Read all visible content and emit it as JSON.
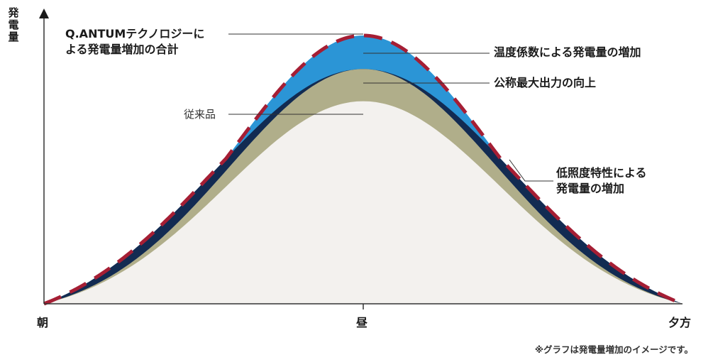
{
  "chart_data": {
    "type": "area",
    "ylabel": "発電量",
    "categories": [
      "朝",
      "昼",
      "夕方"
    ],
    "series": [
      {
        "name": "従来品",
        "peak": 0.755,
        "color": "#f3f1ee"
      },
      {
        "name": "公称最大出力の向上",
        "peak": 0.875,
        "color": "#b0ae8a"
      },
      {
        "name": "低照度特性による発電量の増加",
        "peak": 0.875,
        "color": "#122b52"
      },
      {
        "name": "温度係数による発電量の増加",
        "peak": 1.0,
        "color": "#2b95d6"
      }
    ],
    "total": {
      "name": "Q.ANTUMテクノロジーによる発電量増加の合計",
      "color": "#a51e34"
    },
    "annotations": [
      {
        "text": "Q.ANTUMテクノロジーに",
        "text2": "よる発電量増加の合計"
      },
      {
        "text": "温度係数による発電量の増加"
      },
      {
        "text": "公称最大出力の向上"
      },
      {
        "text": "従来品"
      },
      {
        "text": "低照度特性による",
        "text2": "発電量の増加"
      }
    ],
    "note": "※グラフは発電量増加のイメージです。"
  }
}
